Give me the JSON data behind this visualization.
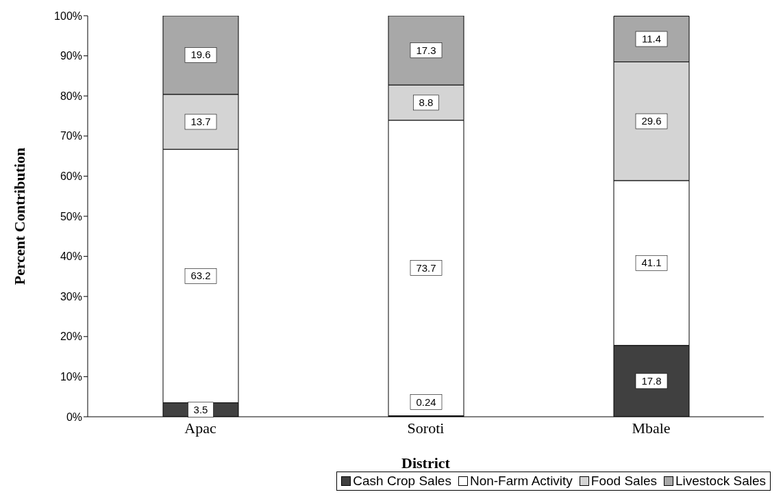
{
  "chart_data": {
    "type": "bar",
    "stacked": true,
    "xlabel": "District",
    "ylabel": "Percent Contribution",
    "categories": [
      "Apac",
      "Soroti",
      "Mbale"
    ],
    "series": [
      {
        "name": "Cash Crop Sales",
        "color": "#404040",
        "values": [
          3.5,
          0.24,
          17.8
        ]
      },
      {
        "name": "Non-Farm Activity",
        "color": "#ffffff",
        "values": [
          63.2,
          73.7,
          41.1
        ]
      },
      {
        "name": "Food Sales",
        "color": "#d4d4d4",
        "values": [
          13.7,
          8.8,
          29.6
        ]
      },
      {
        "name": "Livestock Sales",
        "color": "#a8a8a8",
        "values": [
          19.6,
          17.3,
          11.4
        ]
      }
    ],
    "ylim": [
      0,
      100
    ],
    "yticks": [
      {
        "value": 0,
        "label": "0%"
      },
      {
        "value": 10,
        "label": "10%"
      },
      {
        "value": 20,
        "label": "20%"
      },
      {
        "value": 30,
        "label": "30%"
      },
      {
        "value": 40,
        "label": "40%"
      },
      {
        "value": 50,
        "label": "50%"
      },
      {
        "value": 60,
        "label": "60%"
      },
      {
        "value": 70,
        "label": "70%"
      },
      {
        "value": 80,
        "label": "80%"
      },
      {
        "value": 90,
        "label": "90%"
      },
      {
        "value": 100,
        "label": "100%"
      }
    ],
    "data_labels": true,
    "legend": "bottom",
    "grid": false
  }
}
